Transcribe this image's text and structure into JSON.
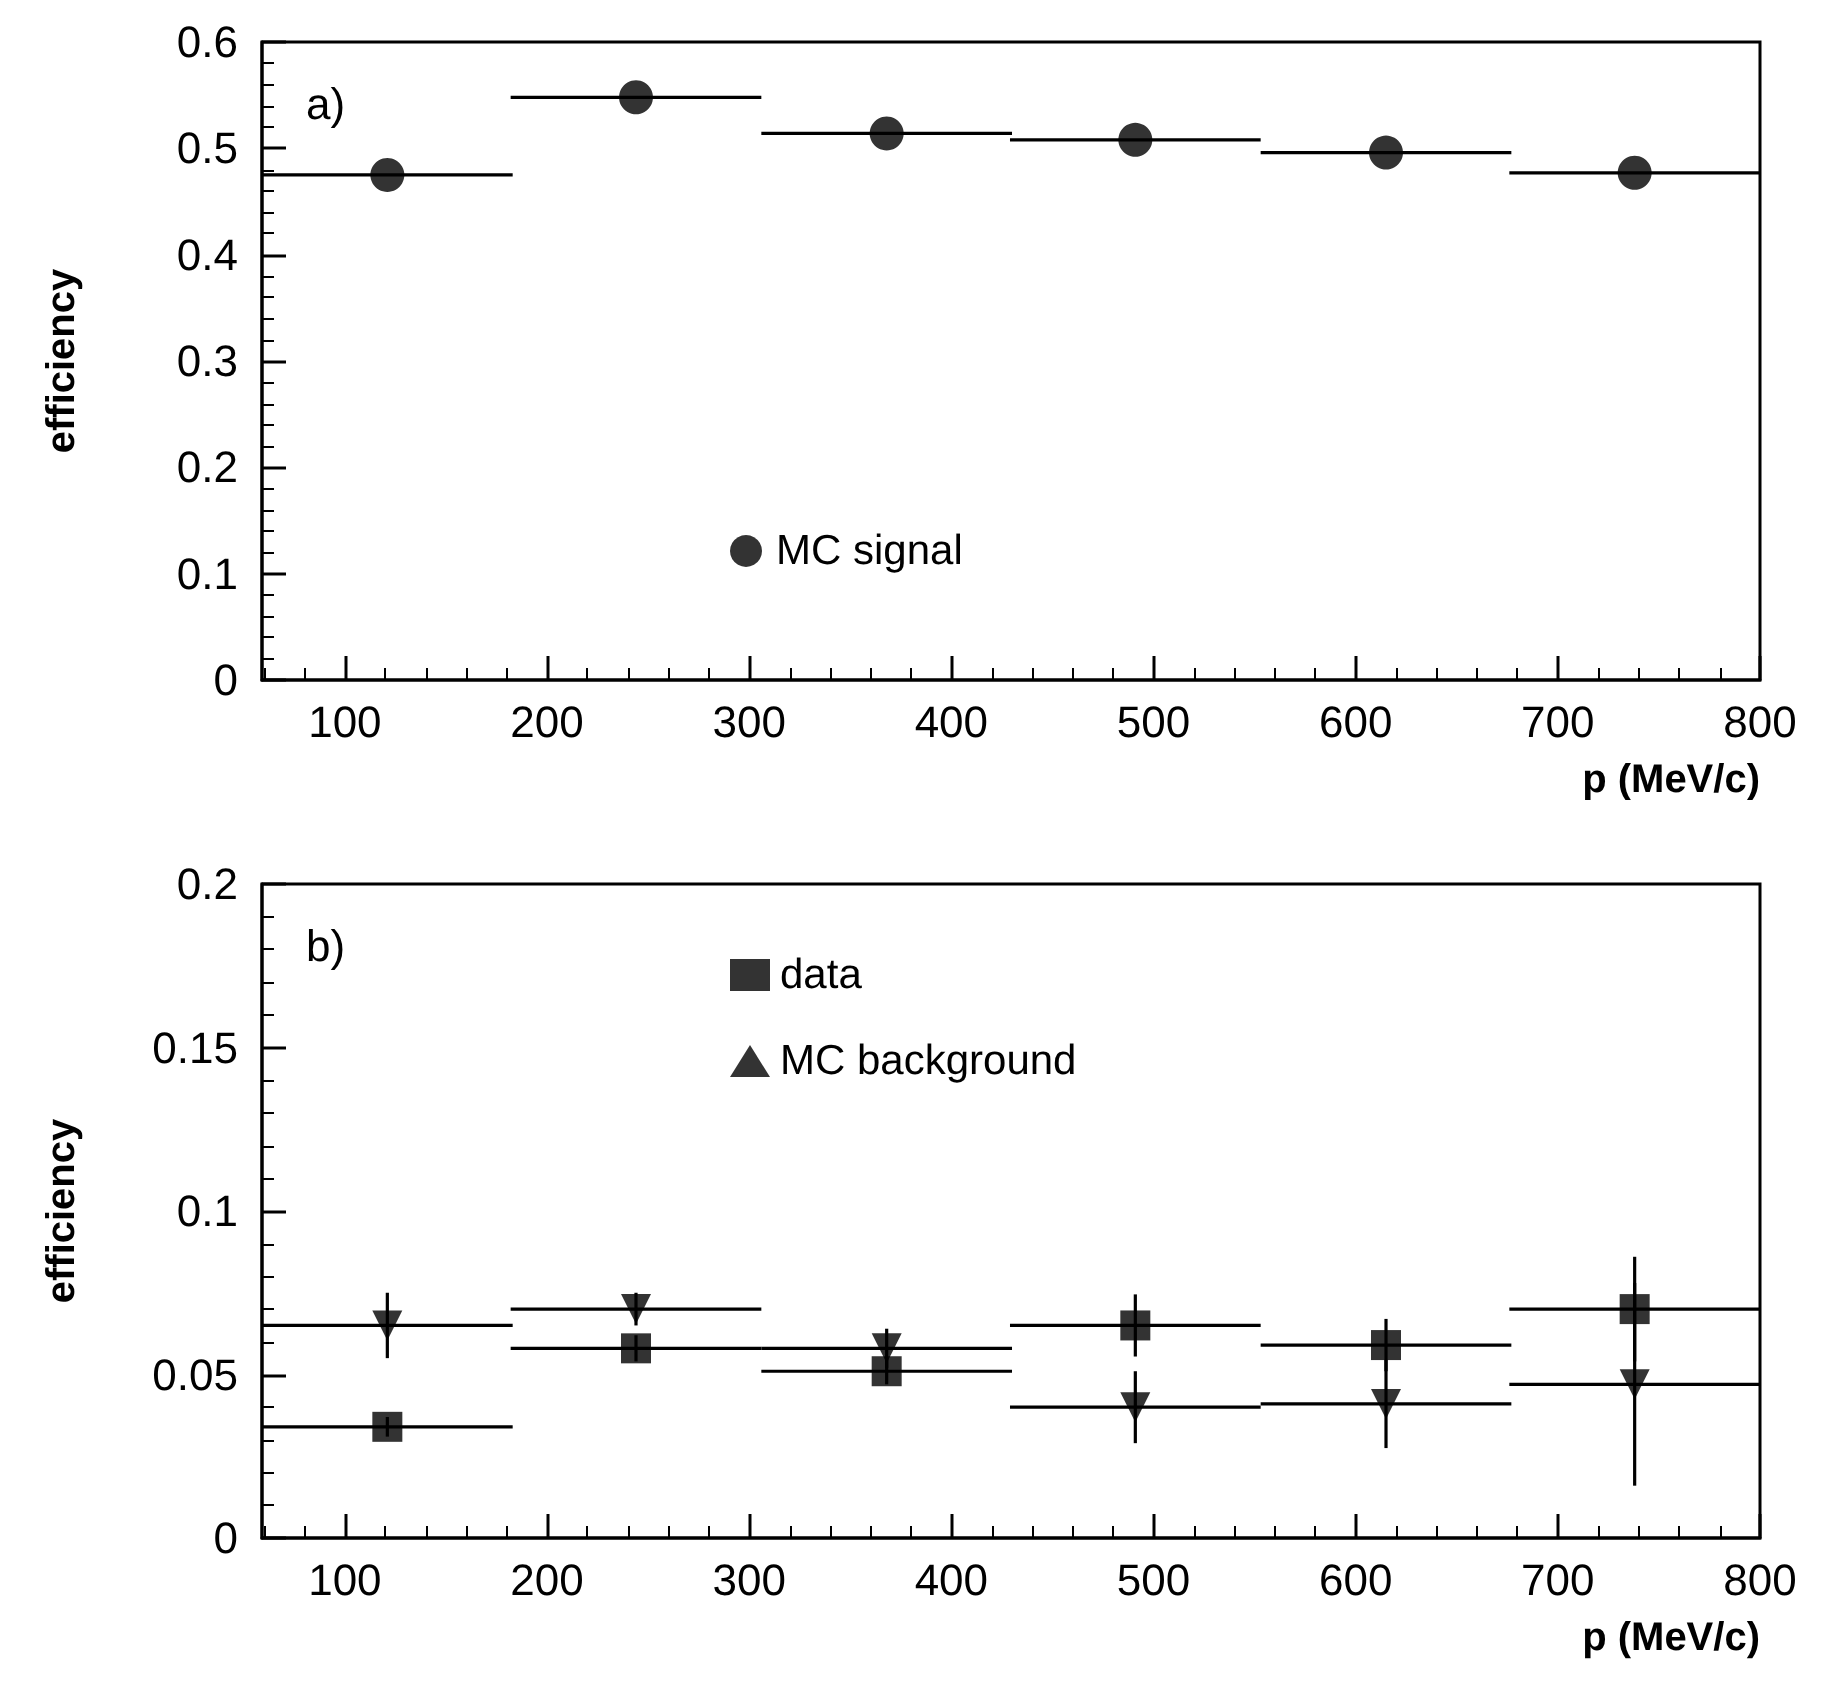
{
  "chart_data": [
    {
      "type": "scatter",
      "annotations": [
        "a)"
      ],
      "xlabel": "p (MeV/c)",
      "ylabel": "efficiency",
      "x": [
        121,
        244,
        368,
        491,
        615,
        738
      ],
      "xlim": [
        59,
        800
      ],
      "xticks": [
        100,
        200,
        300,
        400,
        500,
        600,
        700,
        800
      ],
      "ylim": [
        0,
        0.6
      ],
      "yticks": [
        0,
        0.1,
        0.2,
        0.3,
        0.4,
        0.5,
        0.6
      ],
      "grid": false,
      "legend": "bottom",
      "series": [
        {
          "name": "MC signal",
          "color": "#000000",
          "marker": "circle",
          "values": [
            0.475,
            0.548,
            0.514,
            0.508,
            0.496,
            0.477
          ],
          "xerrors": [
            62,
            62,
            62,
            62,
            62,
            62
          ]
        }
      ]
    },
    {
      "type": "scatter",
      "annotations": [
        "b)"
      ],
      "xlabel": "p (MeV/c)",
      "ylabel": "efficiency",
      "x": [
        121,
        244,
        368,
        491,
        615,
        738
      ],
      "xlim": [
        59,
        800
      ],
      "xticks": [
        100,
        200,
        300,
        400,
        500,
        600,
        700,
        800
      ],
      "ylim": [
        0,
        0.2
      ],
      "yticks": [
        0,
        0.05,
        0.1,
        0.15,
        0.2
      ],
      "grid": false,
      "legend": "top",
      "series": [
        {
          "name": "data",
          "color": "#000000",
          "marker": "square",
          "values": [
            0.034,
            0.058,
            0.051,
            0.065,
            0.059,
            0.07
          ],
          "errors": [
            0.003,
            0.004,
            0.004,
            0.0095,
            0.008,
            0.016
          ],
          "xerrors": [
            62,
            62,
            62,
            62,
            62,
            62
          ]
        },
        {
          "name": "MC background",
          "color": "#000000",
          "marker": "triangle",
          "values": [
            0.065,
            0.07,
            0.058,
            0.04,
            0.041,
            0.047
          ],
          "errors": [
            0.01,
            0.005,
            0.006,
            0.011,
            0.0135,
            0.031
          ],
          "xerrors": [
            62,
            62,
            62,
            62,
            62,
            62
          ]
        }
      ]
    }
  ]
}
